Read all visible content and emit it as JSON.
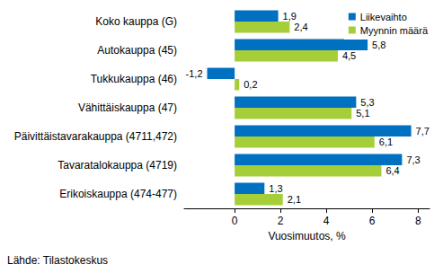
{
  "chart_data": {
    "type": "bar",
    "orientation": "horizontal",
    "categories": [
      "Koko kauppa (G)",
      "Autokauppa (45)",
      "Tukkukauppa (46)",
      "Vähittäiskauppa (47)",
      "Päivittäistavarakauppa (4711,472)",
      "Tavaratalokauppa (4719)",
      "Erikoiskauppa (474-477)"
    ],
    "series": [
      {
        "name": "Liikevaihto",
        "color": "#0070c0",
        "values": [
          1.9,
          5.8,
          -1.2,
          5.3,
          7.7,
          7.3,
          1.3
        ],
        "value_labels": [
          "1,9",
          "5,8",
          "-1,2",
          "5,3",
          "7,7",
          "7,3",
          "1,3"
        ]
      },
      {
        "name": "Myynnin määrä",
        "color": "#a6ce39",
        "values": [
          2.4,
          4.5,
          0.2,
          5.1,
          6.1,
          6.4,
          2.1
        ],
        "value_labels": [
          "2,4",
          "4,5",
          "0,2",
          "5,1",
          "6,1",
          "6,4",
          "2,1"
        ]
      }
    ],
    "x_label": "Vuosimuutos, %",
    "xlim": [
      -2.2,
      8.5
    ],
    "xticks": [
      0,
      2,
      4,
      6,
      8
    ],
    "grid": false,
    "legend": "upper right",
    "data_labels": true,
    "annotations": [
      "Lähde: Tilastokeskus"
    ]
  }
}
